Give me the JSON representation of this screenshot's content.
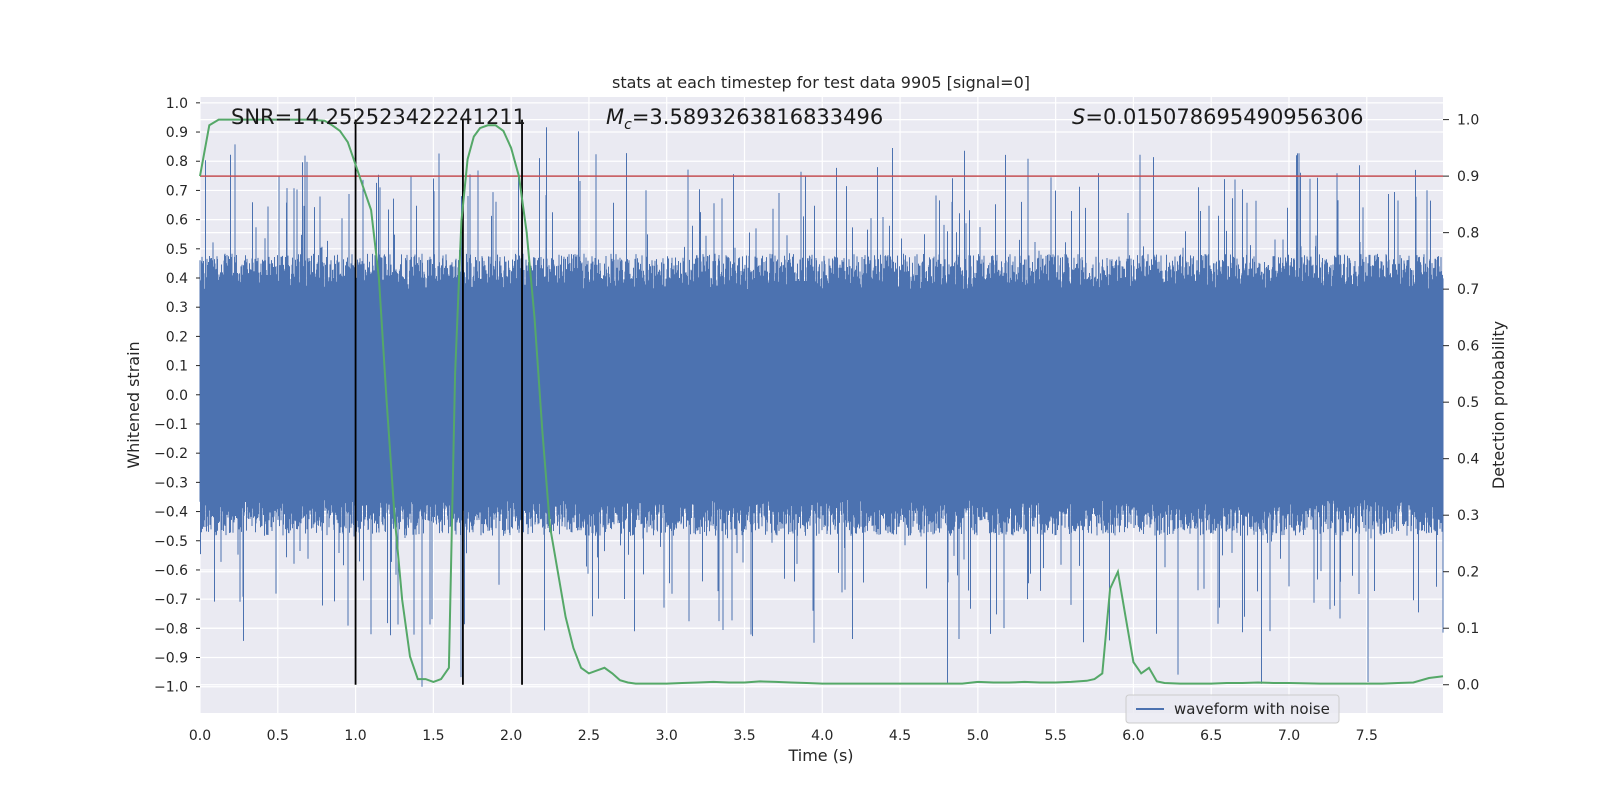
{
  "chart_data": {
    "type": "line",
    "title": "stats at each timestep for test data 9905 [signal=0]",
    "xlabel": "Time (s)",
    "ylabel_left": "Whitened strain",
    "ylabel_right": "Detection probability",
    "xlim": [
      0,
      7.99
    ],
    "ylim_left": [
      -1.09,
      1.02
    ],
    "ylim_right": [
      -0.05,
      1.04
    ],
    "x_ticks": [
      0.0,
      0.5,
      1.0,
      1.5,
      2.0,
      2.5,
      3.0,
      3.5,
      4.0,
      4.5,
      5.0,
      5.5,
      6.0,
      6.5,
      7.0,
      7.5
    ],
    "x_tick_labels": [
      "0.0",
      "0.5",
      "1.0",
      "1.5",
      "2.0",
      "2.5",
      "3.0",
      "3.5",
      "4.0",
      "4.5",
      "5.0",
      "5.5",
      "6.0",
      "6.5",
      "7.0",
      "7.5"
    ],
    "y_left_ticks": [
      1.0,
      0.9,
      0.8,
      0.7,
      0.6,
      0.5,
      0.4,
      0.3,
      0.2,
      0.1,
      0.0,
      -0.1,
      -0.2,
      -0.3,
      -0.4,
      -0.5,
      -0.6,
      -0.7,
      -0.8,
      -0.9,
      -1.0
    ],
    "y_left_tick_labels": [
      "1.0",
      "0.9",
      "0.8",
      "0.7",
      "0.6",
      "0.5",
      "0.4",
      "0.3",
      "0.2",
      "0.1",
      "0.0",
      "−0.1",
      "−0.2",
      "−0.3",
      "−0.4",
      "−0.5",
      "−0.6",
      "−0.7",
      "−0.8",
      "−0.9",
      "−1.0"
    ],
    "y_right_ticks": [
      1.0,
      0.9,
      0.8,
      0.7,
      0.6,
      0.5,
      0.4,
      0.3,
      0.2,
      0.1,
      0.0
    ],
    "y_right_tick_labels": [
      "1.0",
      "0.9",
      "0.8",
      "0.7",
      "0.6",
      "0.5",
      "0.4",
      "0.3",
      "0.2",
      "0.1",
      "0.0"
    ],
    "annotations": {
      "snr": "SNR=14.252523422241211",
      "mc_symbol": "M",
      "mc_subscript": "c",
      "mc_value": "=3.5893263816833496",
      "s_symbol": "S",
      "s_value": "=0.015078695490956306"
    },
    "legend": {
      "label": "waveform with noise",
      "position": "lower-right"
    },
    "series": [
      {
        "name": "waveform with noise",
        "axis": "left",
        "color": "#4c72b0",
        "style": "dense noise waveform",
        "typical_amplitude": 0.42,
        "peak_max": 0.93,
        "peak_min": -1.0
      },
      {
        "name": "detection probability",
        "axis": "right",
        "color": "#55a868",
        "x": [
          0.0,
          0.06,
          0.12,
          0.2,
          0.3,
          0.4,
          0.5,
          0.6,
          0.7,
          0.8,
          0.85,
          0.9,
          0.95,
          1.0,
          1.05,
          1.1,
          1.15,
          1.2,
          1.25,
          1.3,
          1.35,
          1.4,
          1.45,
          1.5,
          1.55,
          1.6,
          1.64,
          1.68,
          1.72,
          1.76,
          1.8,
          1.85,
          1.9,
          1.95,
          2.0,
          2.05,
          2.1,
          2.15,
          2.2,
          2.25,
          2.3,
          2.35,
          2.4,
          2.45,
          2.5,
          2.55,
          2.6,
          2.65,
          2.7,
          2.75,
          2.8,
          2.9,
          3.0,
          3.1,
          3.2,
          3.3,
          3.4,
          3.5,
          3.6,
          3.7,
          3.8,
          3.9,
          4.0,
          4.2,
          4.4,
          4.6,
          4.8,
          4.9,
          5.0,
          5.1,
          5.2,
          5.3,
          5.4,
          5.5,
          5.6,
          5.7,
          5.75,
          5.8,
          5.85,
          5.9,
          5.95,
          6.0,
          6.05,
          6.1,
          6.15,
          6.2,
          6.3,
          6.4,
          6.5,
          6.6,
          6.7,
          6.8,
          6.9,
          7.0,
          7.2,
          7.4,
          7.6,
          7.7,
          7.8,
          7.9,
          7.99
        ],
        "values": [
          0.9,
          0.99,
          1.0,
          1.0,
          1.0,
          1.0,
          1.0,
          1.0,
          1.0,
          0.998,
          0.99,
          0.98,
          0.96,
          0.92,
          0.88,
          0.84,
          0.72,
          0.5,
          0.3,
          0.15,
          0.05,
          0.01,
          0.01,
          0.005,
          0.01,
          0.03,
          0.55,
          0.82,
          0.93,
          0.97,
          0.985,
          0.99,
          0.99,
          0.98,
          0.95,
          0.9,
          0.8,
          0.65,
          0.45,
          0.28,
          0.2,
          0.12,
          0.065,
          0.03,
          0.02,
          0.025,
          0.03,
          0.02,
          0.008,
          0.004,
          0.002,
          0.002,
          0.002,
          0.003,
          0.004,
          0.005,
          0.004,
          0.004,
          0.006,
          0.005,
          0.004,
          0.003,
          0.002,
          0.002,
          0.002,
          0.002,
          0.002,
          0.002,
          0.005,
          0.004,
          0.004,
          0.005,
          0.004,
          0.004,
          0.005,
          0.007,
          0.01,
          0.02,
          0.17,
          0.2,
          0.12,
          0.04,
          0.02,
          0.03,
          0.006,
          0.003,
          0.002,
          0.002,
          0.002,
          0.003,
          0.003,
          0.004,
          0.003,
          0.003,
          0.002,
          0.002,
          0.002,
          0.003,
          0.004,
          0.012,
          0.015
        ]
      }
    ],
    "threshold": {
      "axis": "right",
      "value": 0.9,
      "color": "#c44e52"
    },
    "vertical_markers_s": [
      1.0,
      1.69,
      2.07
    ],
    "vertical_marker_color": "#000000"
  }
}
